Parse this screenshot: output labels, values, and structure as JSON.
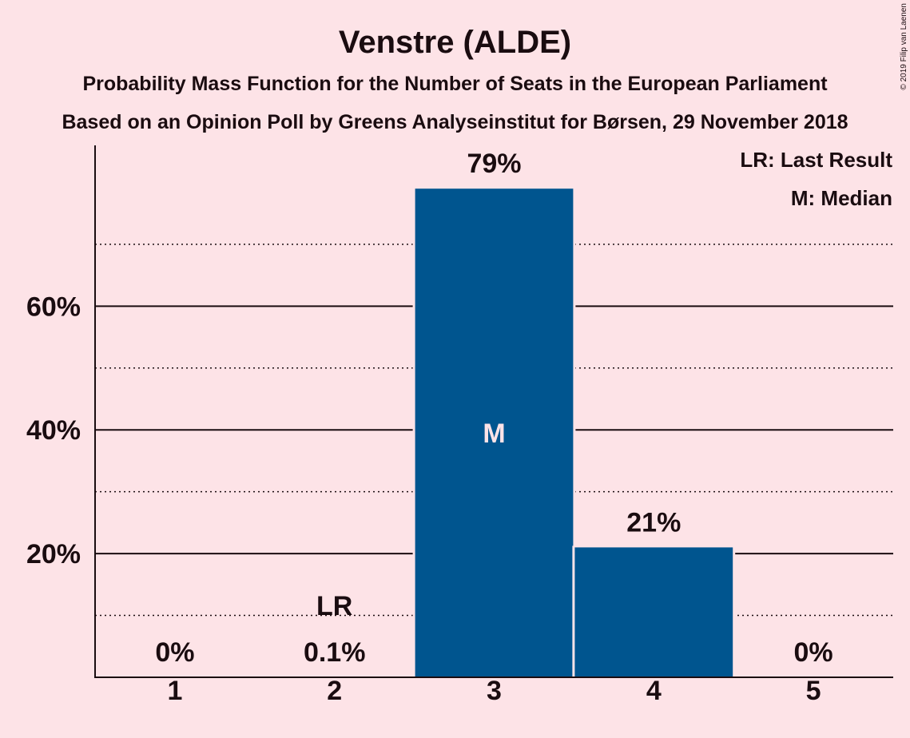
{
  "chart_data": {
    "type": "bar",
    "title": "Venstre (ALDE)",
    "subtitle": "Probability Mass Function for the Number of Seats in the European Parliament",
    "subtitle2": "Based on an Opinion Poll by Greens Analyseinstitut for Børsen, 29 November 2018",
    "copyright": "© 2019 Filip van Laenen",
    "legend": {
      "placement": "top-right",
      "entries": [
        "LR: Last Result",
        "M: Median"
      ]
    },
    "categories": [
      "1",
      "2",
      "3",
      "4",
      "5"
    ],
    "values": [
      0,
      0.1,
      79,
      21,
      0
    ],
    "value_labels": [
      "0%",
      "0.1%",
      "79%",
      "21%",
      "0%"
    ],
    "markers": {
      "last_result": {
        "category": "2",
        "label": "LR"
      },
      "median": {
        "category": "3",
        "label": "M"
      }
    },
    "ylim": [
      0,
      86
    ],
    "yticks": [
      20,
      40,
      60
    ],
    "ytick_labels": [
      "20%",
      "40%",
      "60%"
    ],
    "minor_gridlines": [
      10,
      30,
      50,
      70
    ],
    "grid": true,
    "xlabel": "",
    "ylabel": "",
    "bar_color": "#00558f",
    "background_color": "#fde3e7"
  }
}
